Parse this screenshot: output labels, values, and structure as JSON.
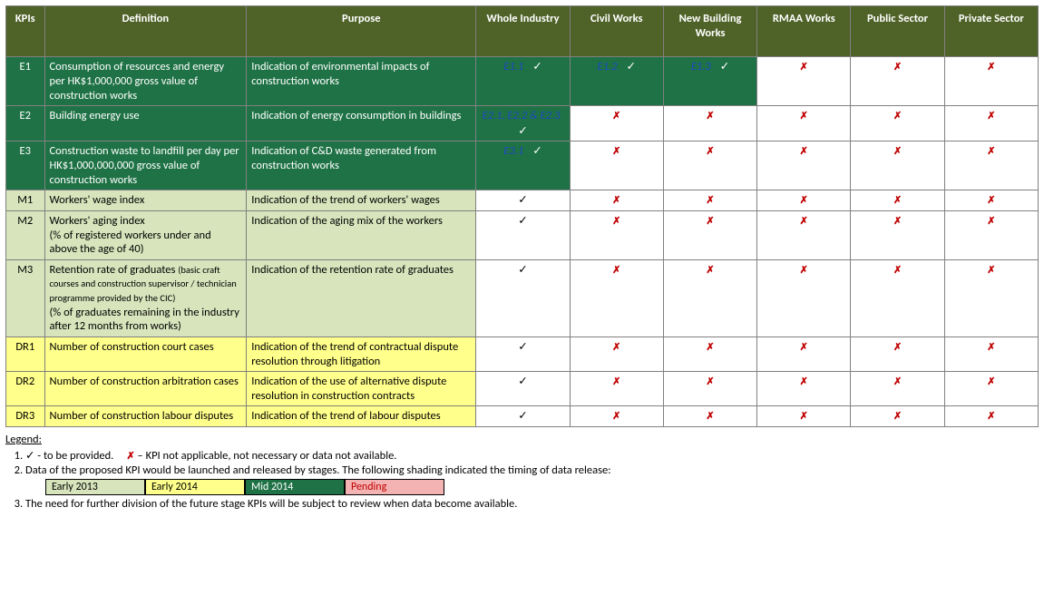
{
  "headers": [
    "KPIs",
    "Definition",
    "Purpose",
    "Whole Industry",
    "Civil Works",
    "New Building Works",
    "RMAA Works",
    "Public Sector",
    "Private Sector"
  ],
  "rows": [
    {
      "id": "E1",
      "group": "dark",
      "definition": "Consumption of resources and energy per HK$1,000,000 gross value of construction works",
      "purpose": "Indication of environmental impacts of construction works",
      "cells": [
        {
          "type": "linkcheck",
          "text": "E1.1",
          "bg": "dark"
        },
        {
          "type": "linkcheck",
          "text": "E1.2",
          "bg": "dark"
        },
        {
          "type": "linkcheck",
          "text": "E1.3",
          "bg": "dark"
        },
        {
          "type": "cross"
        },
        {
          "type": "cross"
        },
        {
          "type": "cross"
        }
      ]
    },
    {
      "id": "E2",
      "group": "dark",
      "definition": "Building energy use",
      "purpose": "Indication of energy consumption in buildings",
      "cells": [
        {
          "type": "linkcheck2",
          "text": "E2.1, E2.2 & E2.3",
          "bg": "dark"
        },
        {
          "type": "cross"
        },
        {
          "type": "cross"
        },
        {
          "type": "cross"
        },
        {
          "type": "cross"
        },
        {
          "type": "cross"
        }
      ]
    },
    {
      "id": "E3",
      "group": "dark",
      "definition": "Construction waste to landfill per day per HK$1,000,000,000 gross value of construction works",
      "purpose": "Indication of C&D waste generated from construction works",
      "cells": [
        {
          "type": "linkcheck",
          "text": "E3.1",
          "bg": "dark"
        },
        {
          "type": "cross"
        },
        {
          "type": "cross"
        },
        {
          "type": "cross"
        },
        {
          "type": "cross"
        },
        {
          "type": "cross"
        }
      ]
    },
    {
      "id": "M1",
      "group": "light",
      "definition": "Workers' wage index",
      "purpose": "Indication of the trend of workers' wages",
      "cells": [
        {
          "type": "check"
        },
        {
          "type": "cross"
        },
        {
          "type": "cross"
        },
        {
          "type": "cross"
        },
        {
          "type": "cross"
        },
        {
          "type": "cross"
        }
      ]
    },
    {
      "id": "M2",
      "group": "light",
      "definition": "Workers' aging index\n(% of registered workers under and above the age of 40)",
      "purpose": "Indication of the aging mix of the workers",
      "cells": [
        {
          "type": "check"
        },
        {
          "type": "cross"
        },
        {
          "type": "cross"
        },
        {
          "type": "cross"
        },
        {
          "type": "cross"
        },
        {
          "type": "cross"
        }
      ]
    },
    {
      "id": "M3",
      "group": "light",
      "definition": "Retention rate of graduates <small>(basic craft courses and construction supervisor / technician programme provided by the CIC)</small>\n (% of graduates remaining in the industry after 12 months from works)",
      "purpose": "Indication of the retention rate of graduates",
      "cells": [
        {
          "type": "check"
        },
        {
          "type": "cross"
        },
        {
          "type": "cross"
        },
        {
          "type": "cross"
        },
        {
          "type": "cross"
        },
        {
          "type": "cross"
        }
      ]
    },
    {
      "id": "DR1",
      "group": "yel",
      "definition": "Number of construction court cases",
      "purpose": "Indication of the trend of contractual dispute resolution through litigation",
      "cells": [
        {
          "type": "check"
        },
        {
          "type": "cross"
        },
        {
          "type": "cross"
        },
        {
          "type": "cross"
        },
        {
          "type": "cross"
        },
        {
          "type": "cross"
        }
      ]
    },
    {
      "id": "DR2",
      "group": "yel",
      "definition": "Number of construction arbitration cases",
      "purpose": "Indication of the use of alternative dispute resolution in construction contracts",
      "cells": [
        {
          "type": "check"
        },
        {
          "type": "cross"
        },
        {
          "type": "cross"
        },
        {
          "type": "cross"
        },
        {
          "type": "cross"
        },
        {
          "type": "cross"
        }
      ]
    },
    {
      "id": "DR3",
      "group": "yel",
      "definition": "Number of construction labour disputes",
      "purpose": "Indication of the trend of labour disputes",
      "cells": [
        {
          "type": "check"
        },
        {
          "type": "cross"
        },
        {
          "type": "cross"
        },
        {
          "type": "cross"
        },
        {
          "type": "cross"
        },
        {
          "type": "cross"
        }
      ]
    }
  ],
  "legend": {
    "title": "Legend:",
    "item1_a": "✓ - to be provided.",
    "item1_b": "✗ – KPI not applicable, not necessary or data not available.",
    "item2": "Data of the proposed KPI would be launched and released by stages. The following shading indicated the timing of data release:",
    "shades": [
      "Early 2013",
      "Early 2014",
      "Mid 2014",
      "Pending"
    ],
    "item3": "The need for further division of the future stage KPIs will be subject to review when data become available."
  }
}
